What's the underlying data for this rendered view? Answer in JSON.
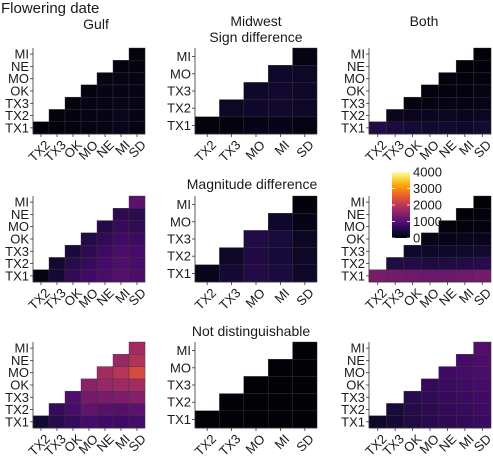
{
  "figure": {
    "title": "Flowering date",
    "col_titles": [
      "Gulf",
      "Midwest",
      "Both"
    ],
    "row_titles": [
      "Sign difference",
      "Magnitude difference",
      "Not distinguishable"
    ],
    "colors": {
      "low": "#000004",
      "mid": "#b73779",
      "high": "#fcffa4"
    }
  },
  "chart_data": {
    "type": "heatmap",
    "scale": {
      "min": 0,
      "max": 4000,
      "ticks": [
        0,
        1000,
        2000,
        3000,
        4000
      ],
      "colormap": "inferno"
    },
    "panels": [
      {
        "id": "sign-gulf",
        "row": 0,
        "col": 0,
        "x": [
          "TX2",
          "TX3",
          "OK",
          "MO",
          "NE",
          "MI",
          "SD"
        ],
        "y": [
          "TX1",
          "TX2",
          "TX3",
          "OK",
          "MO",
          "NE",
          "MI"
        ],
        "values": [
          [
            40,
            60,
            90,
            110,
            130,
            160,
            120
          ],
          [
            0,
            70,
            100,
            120,
            140,
            170,
            140
          ],
          [
            0,
            0,
            90,
            120,
            150,
            160,
            150
          ],
          [
            0,
            0,
            0,
            100,
            130,
            150,
            140
          ],
          [
            0,
            0,
            0,
            0,
            110,
            130,
            120
          ],
          [
            0,
            0,
            0,
            0,
            0,
            90,
            100
          ],
          [
            0,
            0,
            0,
            0,
            0,
            0,
            70
          ]
        ]
      },
      {
        "id": "sign-midwest",
        "row": 0,
        "col": 1,
        "x": [
          "TX2",
          "TX3",
          "MO",
          "MI",
          "SD"
        ],
        "y": [
          "TX1",
          "TX2",
          "TX3",
          "MO",
          "MI"
        ],
        "values": [
          [
            70,
            90,
            140,
            150,
            110
          ],
          [
            0,
            260,
            300,
            320,
            260
          ],
          [
            0,
            0,
            280,
            330,
            280
          ],
          [
            0,
            0,
            0,
            300,
            250
          ],
          [
            0,
            0,
            0,
            0,
            110
          ]
        ]
      },
      {
        "id": "sign-both",
        "row": 0,
        "col": 2,
        "x": [
          "TX2",
          "TX3",
          "OK",
          "MO",
          "NE",
          "MI",
          "SD"
        ],
        "y": [
          "TX1",
          "TX2",
          "TX3",
          "OK",
          "MO",
          "NE",
          "MI"
        ],
        "values": [
          [
            520,
            450,
            380,
            350,
            330,
            300,
            360
          ],
          [
            0,
            180,
            190,
            200,
            210,
            200,
            230
          ],
          [
            0,
            0,
            90,
            110,
            120,
            110,
            140
          ],
          [
            0,
            0,
            0,
            80,
            90,
            90,
            110
          ],
          [
            0,
            0,
            0,
            0,
            60,
            60,
            80
          ],
          [
            0,
            0,
            0,
            0,
            0,
            40,
            50
          ],
          [
            0,
            0,
            0,
            0,
            0,
            0,
            30
          ]
        ]
      },
      {
        "id": "magnitude-gulf",
        "row": 1,
        "col": 0,
        "x": [
          "TX2",
          "TX3",
          "OK",
          "MO",
          "NE",
          "MI",
          "SD"
        ],
        "y": [
          "TX1",
          "TX2",
          "TX3",
          "OK",
          "MO",
          "NE",
          "MI"
        ],
        "values": [
          [
            120,
            380,
            650,
            780,
            880,
            980,
            900
          ],
          [
            0,
            340,
            560,
            700,
            820,
            920,
            860
          ],
          [
            0,
            0,
            420,
            620,
            760,
            880,
            840
          ],
          [
            0,
            0,
            0,
            520,
            650,
            780,
            740
          ],
          [
            0,
            0,
            0,
            0,
            520,
            700,
            640
          ],
          [
            0,
            0,
            0,
            0,
            0,
            620,
            600
          ],
          [
            0,
            0,
            0,
            0,
            0,
            0,
            1040
          ]
        ]
      },
      {
        "id": "magnitude-midwest",
        "row": 1,
        "col": 1,
        "x": [
          "TX2",
          "TX3",
          "MO",
          "MI",
          "SD"
        ],
        "y": [
          "TX1",
          "TX2",
          "TX3",
          "MO",
          "MI"
        ],
        "values": [
          [
            160,
            360,
            520,
            450,
            280
          ],
          [
            0,
            260,
            480,
            400,
            250
          ],
          [
            0,
            0,
            500,
            430,
            240
          ],
          [
            0,
            0,
            0,
            300,
            150
          ],
          [
            0,
            0,
            0,
            0,
            60
          ]
        ]
      },
      {
        "id": "magnitude-both",
        "row": 1,
        "col": 2,
        "x": [
          "TX2",
          "TX3",
          "OK",
          "MO",
          "NE",
          "MI",
          "SD"
        ],
        "y": [
          "TX1",
          "TX2",
          "TX3",
          "OK",
          "MO",
          "NE",
          "MI"
        ],
        "values": [
          [
            1350,
            1300,
            1250,
            1200,
            1200,
            1250,
            1300
          ],
          [
            0,
            500,
            520,
            480,
            480,
            520,
            560
          ],
          [
            0,
            0,
            300,
            280,
            300,
            320,
            340
          ],
          [
            0,
            0,
            0,
            140,
            150,
            170,
            190
          ],
          [
            0,
            0,
            0,
            0,
            60,
            70,
            90
          ],
          [
            0,
            0,
            0,
            0,
            0,
            30,
            50
          ],
          [
            0,
            0,
            0,
            0,
            0,
            0,
            20
          ]
        ]
      },
      {
        "id": "notdist-gulf",
        "row": 2,
        "col": 0,
        "x": [
          "TX2",
          "TX3",
          "OK",
          "MO",
          "NE",
          "MI",
          "SD"
        ],
        "y": [
          "TX1",
          "TX2",
          "TX3",
          "OK",
          "MO",
          "NE",
          "MI"
        ],
        "values": [
          [
            350,
            560,
            700,
            820,
            780,
            760,
            820
          ],
          [
            0,
            700,
            860,
            1100,
            1000,
            980,
            1050
          ],
          [
            0,
            0,
            920,
            1300,
            1350,
            1400,
            1450
          ],
          [
            0,
            0,
            0,
            1500,
            1650,
            1700,
            1750
          ],
          [
            0,
            0,
            0,
            0,
            1750,
            1950,
            2300
          ],
          [
            0,
            0,
            0,
            0,
            0,
            1650,
            1900
          ],
          [
            0,
            0,
            0,
            0,
            0,
            0,
            1750
          ]
        ]
      },
      {
        "id": "notdist-midwest",
        "row": 2,
        "col": 1,
        "x": [
          "TX2",
          "TX3",
          "MO",
          "MI",
          "SD"
        ],
        "y": [
          "TX1",
          "TX2",
          "TX3",
          "MO",
          "MI"
        ],
        "values": [
          [
            20,
            20,
            20,
            20,
            20
          ],
          [
            0,
            20,
            20,
            20,
            20
          ],
          [
            0,
            0,
            20,
            20,
            20
          ],
          [
            0,
            0,
            0,
            20,
            20
          ],
          [
            0,
            0,
            0,
            0,
            20
          ]
        ]
      },
      {
        "id": "notdist-both",
        "row": 2,
        "col": 2,
        "x": [
          "TX2",
          "TX3",
          "OK",
          "MO",
          "NE",
          "MI",
          "SD"
        ],
        "y": [
          "TX1",
          "TX2",
          "TX3",
          "OK",
          "MO",
          "NE",
          "MI"
        ],
        "values": [
          [
            260,
            380,
            500,
            560,
            620,
            660,
            720
          ],
          [
            0,
            420,
            540,
            600,
            660,
            700,
            760
          ],
          [
            0,
            0,
            560,
            640,
            700,
            740,
            800
          ],
          [
            0,
            0,
            0,
            680,
            740,
            780,
            840
          ],
          [
            0,
            0,
            0,
            0,
            780,
            820,
            880
          ],
          [
            0,
            0,
            0,
            0,
            0,
            840,
            900
          ],
          [
            0,
            0,
            0,
            0,
            0,
            0,
            960
          ]
        ]
      }
    ]
  }
}
